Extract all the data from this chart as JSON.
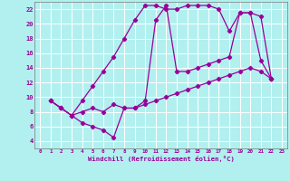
{
  "xlabel": "Windchill (Refroidissement éolien,°C)",
  "bg_color": "#b2f0f0",
  "grid_color": "#ffffff",
  "line_color": "#990099",
  "xlim": [
    -0.5,
    23.5
  ],
  "ylim": [
    3,
    23
  ],
  "xticks": [
    0,
    1,
    2,
    3,
    4,
    5,
    6,
    7,
    8,
    9,
    10,
    11,
    12,
    13,
    14,
    15,
    16,
    17,
    18,
    19,
    20,
    21,
    22,
    23
  ],
  "yticks": [
    4,
    6,
    8,
    10,
    12,
    14,
    16,
    18,
    20,
    22
  ],
  "curve1_x": [
    1,
    2,
    3,
    4,
    5,
    6,
    7,
    8,
    9,
    10,
    11,
    12,
    13,
    14,
    15,
    16,
    17,
    18,
    19,
    20,
    21,
    22
  ],
  "curve1_y": [
    9.5,
    8.5,
    7.5,
    9.5,
    11.5,
    13.5,
    15.5,
    18.0,
    20.5,
    22.5,
    22.5,
    22.0,
    22.0,
    22.5,
    22.5,
    22.5,
    22.0,
    19.0,
    21.5,
    21.5,
    15.0,
    12.5
  ],
  "curve2_x": [
    1,
    2,
    3,
    4,
    5,
    6,
    7,
    8,
    9,
    10,
    11,
    12,
    13,
    14,
    15,
    16,
    17,
    18,
    19,
    20,
    21,
    22
  ],
  "curve2_y": [
    9.5,
    8.5,
    7.5,
    6.5,
    6.0,
    5.5,
    4.5,
    8.5,
    8.5,
    9.5,
    20.5,
    22.5,
    13.5,
    13.5,
    14.0,
    14.5,
    15.0,
    15.5,
    21.5,
    21.5,
    21.0,
    12.5
  ],
  "curve3_x": [
    1,
    2,
    3,
    4,
    5,
    6,
    7,
    8,
    9,
    10,
    11,
    12,
    13,
    14,
    15,
    16,
    17,
    18,
    19,
    20,
    21,
    22
  ],
  "curve3_y": [
    9.5,
    8.5,
    7.5,
    8.0,
    8.5,
    8.0,
    9.0,
    8.5,
    8.5,
    9.0,
    9.5,
    10.0,
    10.5,
    11.0,
    11.5,
    12.0,
    12.5,
    13.0,
    13.5,
    14.0,
    13.5,
    12.5
  ]
}
